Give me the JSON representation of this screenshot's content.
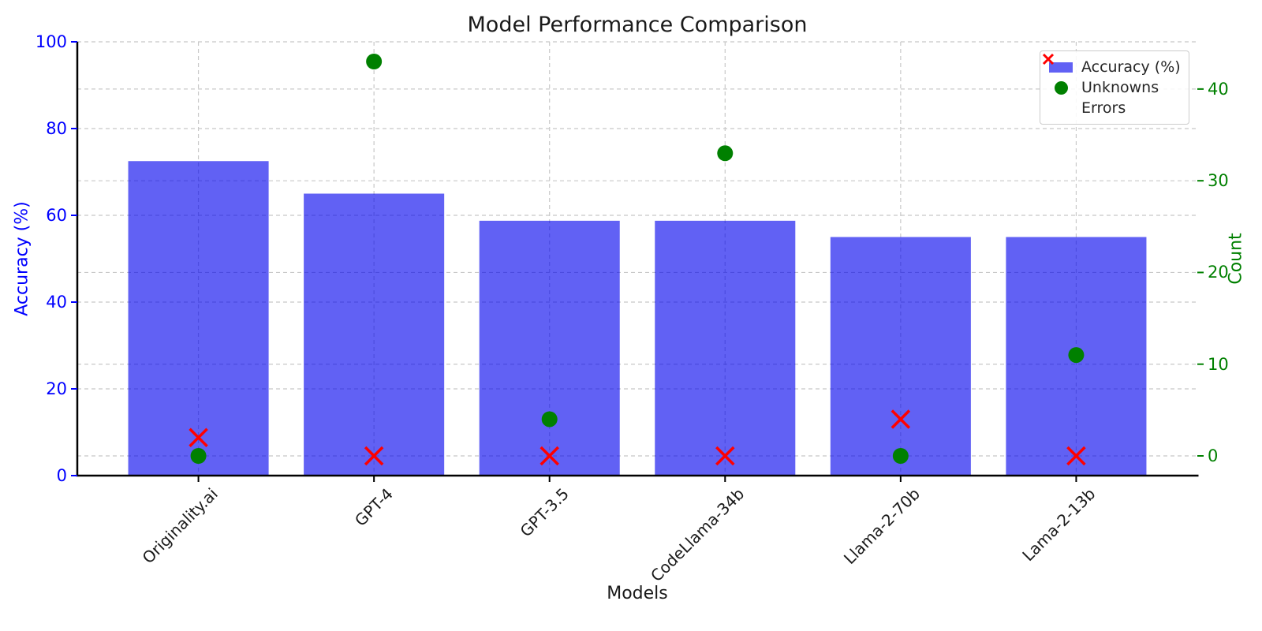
{
  "chart_data": {
    "type": "bar",
    "title": "Model Performance Comparison",
    "xlabel": "Models",
    "ylabel_left": "Accuracy (%)",
    "ylabel_right": "Count",
    "categories": [
      "Originality.ai",
      "GPT-4",
      "GPT-3.5",
      "CodeLlama-34b",
      "Llama-2-70b",
      "Lama-2-13b"
    ],
    "series": [
      {
        "name": "Accuracy (%)",
        "type": "bar",
        "axis": "left",
        "marker": "bar",
        "values": [
          72.5,
          65,
          58.75,
          58.75,
          55,
          55
        ],
        "color": "#0000ee",
        "opacity": 0.62
      },
      {
        "name": "Unknowns",
        "type": "scatter",
        "axis": "right",
        "marker": "circle",
        "values": [
          0,
          43,
          4,
          33,
          0,
          11
        ],
        "color": "#008000",
        "opacity": 1
      },
      {
        "name": "Errors",
        "type": "scatter",
        "axis": "right",
        "marker": "x",
        "values": [
          2,
          0,
          0,
          0,
          4,
          0
        ],
        "color": "#ff0000",
        "opacity": 1
      }
    ],
    "left_axis": {
      "ticks": [
        0,
        20,
        40,
        60,
        80,
        100
      ],
      "lim": [
        0,
        100
      ],
      "color": "#0000ff"
    },
    "right_axis": {
      "ticks": [
        0,
        10,
        20,
        30,
        40
      ],
      "lim": [
        -2.15,
        45.15
      ],
      "color": "#008000"
    },
    "x_axis": {
      "lim": [
        -0.69,
        5.69
      ],
      "tick_rotation_deg": 45,
      "color": "#1a1a1a"
    },
    "bar_width_units": 0.8,
    "grid": true,
    "grid_color": "#c8c8c8",
    "spine_color": "#000000",
    "legend_position": "upper right",
    "legend_labels": [
      "Accuracy (%)",
      "Unknowns",
      "Errors"
    ]
  }
}
